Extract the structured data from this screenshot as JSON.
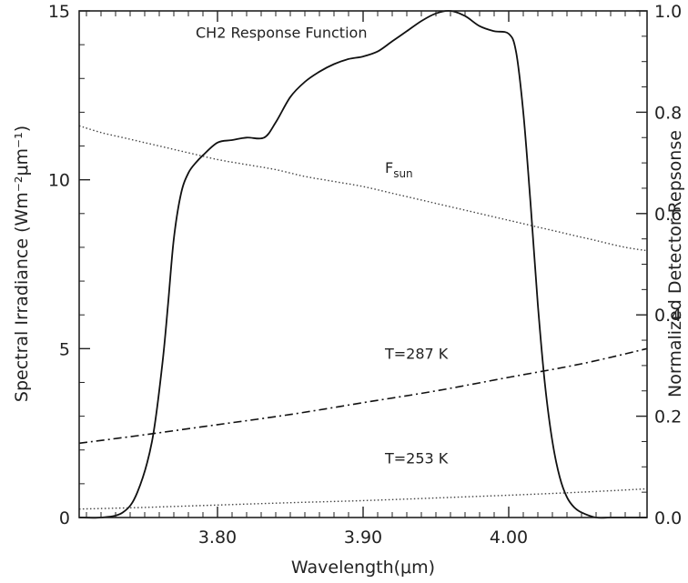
{
  "chart_data": {
    "type": "line",
    "title": "",
    "xlabel": "Wavelength(μm)",
    "ylabel_left": "Spectral Irradiance (Wm⁻²μm⁻¹)",
    "ylabel_right": "Normalized Detector Repsonse",
    "xlim": [
      3.705,
      4.095
    ],
    "ylim_left": [
      0,
      15
    ],
    "ylim_right": [
      0,
      1.0
    ],
    "x_ticks": [
      3.8,
      3.9,
      4.0
    ],
    "x_tick_labels": [
      "3.80",
      "3.90",
      "4.00"
    ],
    "y_left_ticks": [
      0,
      5,
      10,
      15
    ],
    "y_left_tick_labels": [
      "0",
      "5",
      "10",
      "15"
    ],
    "y_right_ticks": [
      0.0,
      0.2,
      0.4,
      0.6,
      0.8,
      1.0
    ],
    "y_right_tick_labels": [
      "0.0",
      "0.2",
      "0.4",
      "0.6",
      "0.8",
      "1.0"
    ],
    "grid": false,
    "annotations": [
      {
        "text": "CH2 Response Function",
        "x": 3.785,
        "y": 14.2
      },
      {
        "text": "Fsun",
        "x": 3.915,
        "y": 10.2
      },
      {
        "text": "T=287 K",
        "x": 3.915,
        "y": 4.7
      },
      {
        "text": "T=253 K",
        "x": 3.915,
        "y": 1.6
      }
    ],
    "series": [
      {
        "axis": "right",
        "style": "solid",
        "x": [
          3.705,
          3.72,
          3.735,
          3.745,
          3.755,
          3.762,
          3.766,
          3.77,
          3.775,
          3.78,
          3.785,
          3.79,
          3.8,
          3.81,
          3.82,
          3.832,
          3.84,
          3.85,
          3.86,
          3.87,
          3.88,
          3.89,
          3.9,
          3.91,
          3.92,
          3.93,
          3.94,
          3.95,
          3.96,
          3.97,
          3.98,
          3.99,
          4.0,
          4.005,
          4.01,
          4.015,
          4.02,
          4.025,
          4.03,
          4.035,
          4.04,
          4.045,
          4.05,
          4.06,
          4.07,
          4.08,
          4.095
        ],
        "y": [
          0.0,
          0.0,
          0.01,
          0.05,
          0.15,
          0.3,
          0.42,
          0.55,
          0.64,
          0.68,
          0.7,
          0.715,
          0.74,
          0.745,
          0.75,
          0.75,
          0.78,
          0.83,
          0.86,
          0.88,
          0.895,
          0.905,
          0.91,
          0.92,
          0.94,
          0.96,
          0.98,
          0.995,
          1.0,
          0.99,
          0.97,
          0.96,
          0.955,
          0.92,
          0.8,
          0.62,
          0.42,
          0.26,
          0.15,
          0.08,
          0.04,
          0.02,
          0.01,
          0.0,
          0.0,
          0.0,
          0.0
        ]
      },
      {
        "name": "Fsun",
        "axis": "left",
        "style": "dotted",
        "x": [
          3.705,
          3.72,
          3.74,
          3.76,
          3.78,
          3.8,
          3.82,
          3.84,
          3.86,
          3.88,
          3.9,
          3.92,
          3.94,
          3.96,
          3.98,
          4.0,
          4.02,
          4.04,
          4.06,
          4.08,
          4.095
        ],
        "y": [
          11.6,
          11.4,
          11.2,
          11.0,
          10.8,
          10.6,
          10.45,
          10.3,
          10.1,
          9.95,
          9.8,
          9.6,
          9.4,
          9.2,
          9.0,
          8.8,
          8.6,
          8.4,
          8.2,
          8.0,
          7.9
        ]
      },
      {
        "name": "T=287 K",
        "axis": "left",
        "style": "dashdot",
        "x": [
          3.705,
          3.75,
          3.8,
          3.85,
          3.9,
          3.95,
          4.0,
          4.05,
          4.095
        ],
        "y": [
          2.2,
          2.45,
          2.75,
          3.05,
          3.4,
          3.75,
          4.15,
          4.55,
          5.0
        ]
      },
      {
        "name": "T=253 K",
        "axis": "left",
        "style": "dotted",
        "x": [
          3.705,
          3.75,
          3.8,
          3.85,
          3.9,
          3.95,
          4.0,
          4.05,
          4.095
        ],
        "y": [
          0.25,
          0.3,
          0.37,
          0.44,
          0.5,
          0.58,
          0.66,
          0.75,
          0.85
        ]
      }
    ]
  }
}
